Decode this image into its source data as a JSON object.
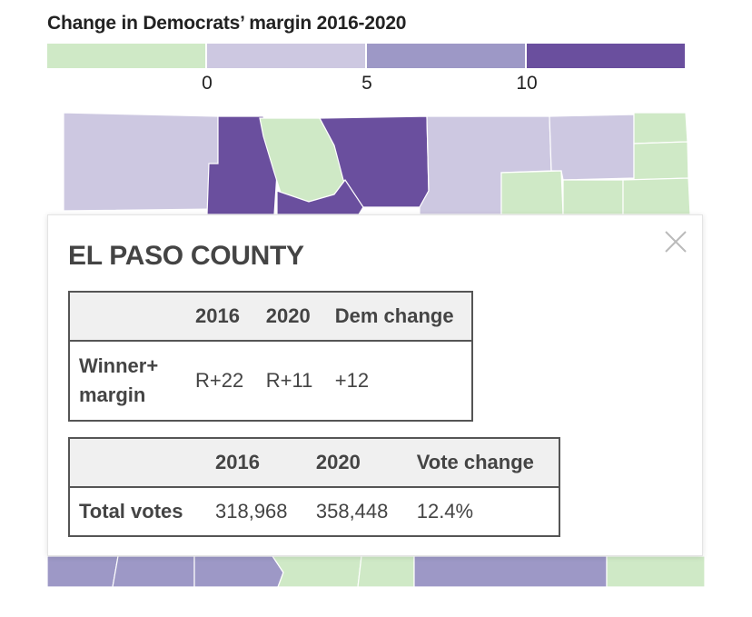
{
  "title": "Change in Democrats’ margin 2016-2020",
  "legend": {
    "colors": [
      "#cfe9c6",
      "#cdc8e1",
      "#9d98c6",
      "#6a4f9e"
    ],
    "ticks": [
      "0",
      "5",
      "10"
    ]
  },
  "map_colors": {
    "green": "#cfe9c6",
    "light_purple": "#cdc8e1",
    "mid_purple": "#9d98c6",
    "dark_purple": "#6a4f9e",
    "county_border": "#ffffff"
  },
  "tooltip": {
    "county": "EL PASO COUNTY",
    "close_icon": "close-icon",
    "margin_table": {
      "headers": [
        "",
        "2016",
        "2020",
        "Dem change"
      ],
      "row_label_line1": "Winner+",
      "row_label_line2": "margin",
      "values": [
        "R+22",
        "R+11",
        "+12"
      ]
    },
    "votes_table": {
      "headers": [
        "",
        "2016",
        "2020",
        "Vote change"
      ],
      "row_label": "Total votes",
      "values": [
        "318,968",
        "358,448",
        "12.4%"
      ]
    }
  }
}
